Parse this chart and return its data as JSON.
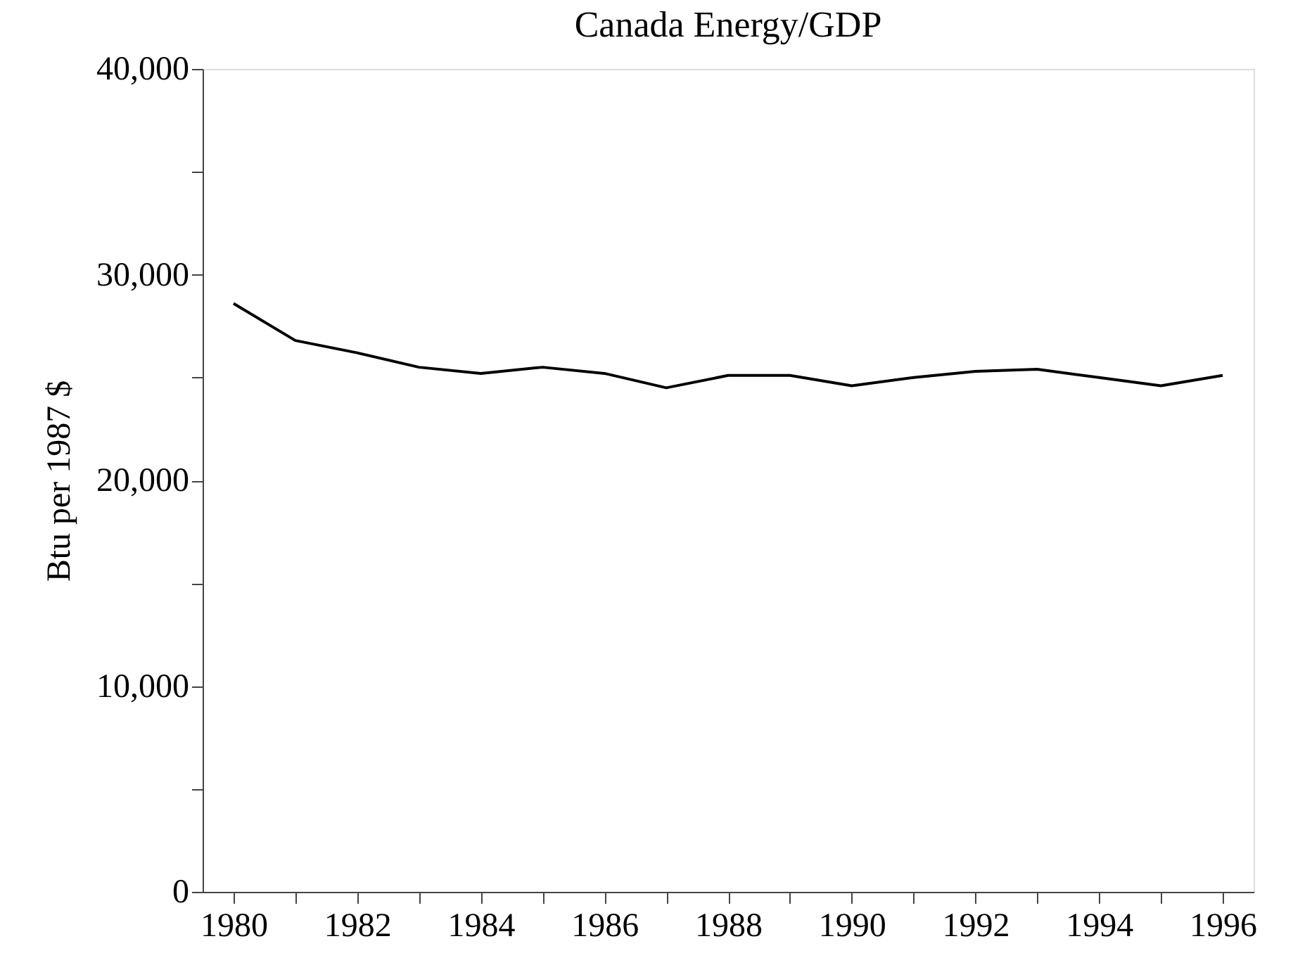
{
  "chart_data": {
    "type": "line",
    "title": "Canada Energy/GDP",
    "ylabel": "Btu per 1987 $",
    "x": [
      1980,
      1981,
      1982,
      1983,
      1984,
      1985,
      1986,
      1987,
      1988,
      1989,
      1990,
      1991,
      1992,
      1993,
      1994,
      1995,
      1996
    ],
    "series": [
      {
        "color": "#000000",
        "values": [
          28600,
          26800,
          26200,
          25500,
          25200,
          25500,
          25200,
          24500,
          25100,
          25100,
          24600,
          25000,
          25300,
          25400,
          25000,
          24600,
          25100
        ]
      }
    ],
    "xlim": [
      1979.5,
      1996.5
    ],
    "xticks": [
      {
        "value": 1980,
        "label": "1980"
      },
      {
        "value": 1981,
        "label": null
      },
      {
        "value": 1982,
        "label": "1982"
      },
      {
        "value": 1983,
        "label": null
      },
      {
        "value": 1984,
        "label": "1984"
      },
      {
        "value": 1985,
        "label": null
      },
      {
        "value": 1986,
        "label": "1986"
      },
      {
        "value": 1987,
        "label": null
      },
      {
        "value": 1988,
        "label": "1988"
      },
      {
        "value": 1989,
        "label": null
      },
      {
        "value": 1990,
        "label": "1990"
      },
      {
        "value": 1991,
        "label": null
      },
      {
        "value": 1992,
        "label": "1992"
      },
      {
        "value": 1993,
        "label": null
      },
      {
        "value": 1994,
        "label": "1994"
      },
      {
        "value": 1995,
        "label": null
      },
      {
        "value": 1996,
        "label": "1996"
      }
    ],
    "ylim": [
      0,
      40000
    ],
    "yticks": [
      {
        "value": 0,
        "label": "0"
      },
      {
        "value": 5000,
        "label": null
      },
      {
        "value": 10000,
        "label": "10,000"
      },
      {
        "value": 15000,
        "label": null
      },
      {
        "value": 20000,
        "label": "20,000"
      },
      {
        "value": 25000,
        "label": null
      },
      {
        "value": 30000,
        "label": "30,000"
      },
      {
        "value": 35000,
        "label": null
      },
      {
        "value": 40000,
        "label": "40,000"
      }
    ],
    "grid": false,
    "marker": "none",
    "line_style": "solid"
  }
}
